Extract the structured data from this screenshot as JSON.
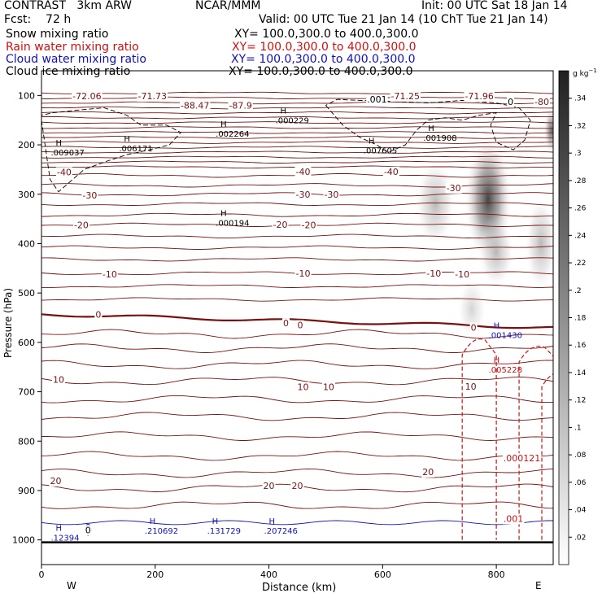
{
  "header": {
    "line1_left": "CONTRAST   3km ARW",
    "line1_center": "NCAR/MMM",
    "line1_right": "Init: 00 UTC Sat 18 Jan 14",
    "fcst": "Fcst:    72 h",
    "valid": "Valid: 00 UTC Tue 21 Jan 14 (10 ChT Tue 21 Jan 14)"
  },
  "fields": [
    {
      "name": "Snow mixing ratio",
      "xy": "XY= 100.0,300.0 to 400.0,300.0",
      "color": "#000000"
    },
    {
      "name": "Rain water mixing ratio",
      "xy": "XY= 100.0,300.0 to 400.0,300.0",
      "color": "#d01010"
    },
    {
      "name": "Cloud water mixing ratio",
      "xy": "XY= 100.0,300.0 to 400.0,300.0",
      "color": "#1010c0"
    },
    {
      "name": "Cloud ice mixing ratio",
      "xy": "XY= 100.0,300.0 to 400.0,300.0",
      "color": "#000000"
    }
  ],
  "colors": {
    "temperature_contour": "#7a1010",
    "rain_contour": "#d01010",
    "cloud_water": "#1010c0",
    "cloud_ice": "#000000"
  },
  "chart_data": {
    "type": "cross-section",
    "xlabel": "Distance (km)",
    "ylabel": "Pressure (hPa)",
    "xlim": [
      0,
      900
    ],
    "ylim": [
      1050,
      50
    ],
    "x_ticks": [
      0,
      200,
      400,
      600,
      800
    ],
    "y_ticks": [
      100,
      200,
      300,
      400,
      500,
      600,
      700,
      800,
      900,
      1000
    ],
    "x_end_labels": {
      "left": "W",
      "right": "E"
    },
    "colorbar": {
      "unit": "g kg",
      "unit_exponent": "−1",
      "ticks": [
        ".02",
        ".04",
        ".06",
        ".08",
        ".1",
        ".12",
        ".14",
        ".16",
        ".18",
        ".2",
        ".22",
        ".24",
        ".26",
        ".28",
        ".3",
        ".32",
        ".34"
      ]
    },
    "temperature_labels": [
      {
        "text": "-72.06",
        "x": 80,
        "p": 101
      },
      {
        "text": "-71.73",
        "x": 195,
        "p": 101
      },
      {
        "text": "-88.47",
        "x": 270,
        "p": 120
      },
      {
        "text": "-87.9",
        "x": 350,
        "p": 120
      },
      {
        "text": "-71.25",
        "x": 640,
        "p": 101
      },
      {
        "text": "-71.96",
        "x": 770,
        "p": 101
      },
      {
        "text": "-80",
        "x": 880,
        "p": 113
      },
      {
        "text": "-40",
        "x": 40,
        "p": 255
      },
      {
        "text": "-40",
        "x": 460,
        "p": 254
      },
      {
        "text": "-40",
        "x": 615,
        "p": 254
      },
      {
        "text": "-30",
        "x": 85,
        "p": 302
      },
      {
        "text": "-30",
        "x": 460,
        "p": 300
      },
      {
        "text": "-30",
        "x": 510,
        "p": 300
      },
      {
        "text": "-30",
        "x": 725,
        "p": 287
      },
      {
        "text": "-20",
        "x": 70,
        "p": 362
      },
      {
        "text": "-20",
        "x": 420,
        "p": 361
      },
      {
        "text": "-20",
        "x": 470,
        "p": 362
      },
      {
        "text": "-10",
        "x": 120,
        "p": 462
      },
      {
        "text": "-10",
        "x": 460,
        "p": 460
      },
      {
        "text": "-10",
        "x": 690,
        "p": 460
      },
      {
        "text": "-10",
        "x": 740,
        "p": 462
      },
      {
        "text": "0",
        "x": 100,
        "p": 543
      },
      {
        "text": "0",
        "x": 430,
        "p": 561
      },
      {
        "text": "0",
        "x": 455,
        "p": 565
      },
      {
        "text": "0",
        "x": 760,
        "p": 570
      },
      {
        "text": "10",
        "x": 30,
        "p": 675
      },
      {
        "text": "10",
        "x": 460,
        "p": 690
      },
      {
        "text": "10",
        "x": 505,
        "p": 690
      },
      {
        "text": "10",
        "x": 755,
        "p": 689
      },
      {
        "text": "20",
        "x": 25,
        "p": 880
      },
      {
        "text": "20",
        "x": 400,
        "p": 890
      },
      {
        "text": "20",
        "x": 450,
        "p": 890
      },
      {
        "text": "20",
        "x": 680,
        "p": 862
      }
    ],
    "extrema": [
      {
        "type": "H",
        "value": ".009037",
        "x": 25,
        "p": 205,
        "field": "ice"
      },
      {
        "type": "H",
        "value": ".006171",
        "x": 145,
        "p": 197,
        "field": "ice"
      },
      {
        "type": "H",
        "value": ".002264",
        "x": 315,
        "p": 167,
        "field": "ice"
      },
      {
        "type": "H",
        "value": ".000229",
        "x": 420,
        "p": 140,
        "field": "ice"
      },
      {
        "type": "H",
        "value": ".000194",
        "x": 315,
        "p": 347,
        "field": "ice"
      },
      {
        "type": "H",
        "value": ".007605",
        "x": 575,
        "p": 201,
        "field": "ice"
      },
      {
        "type": "H",
        "value": ".001908",
        "x": 680,
        "p": 175,
        "field": "ice"
      },
      {
        "type": "H",
        "value": ".001430",
        "x": 795,
        "p": 575,
        "field": "cloud_water"
      },
      {
        "type": "H",
        "value": ".005228",
        "x": 795,
        "p": 645,
        "field": "rain"
      },
      {
        "type": "H",
        "value": ".12394",
        "x": 25,
        "p": 985,
        "field": "cloud_water"
      },
      {
        "type": "H",
        "value": ".210692",
        "x": 190,
        "p": 971,
        "field": "cloud_water"
      },
      {
        "type": "H",
        "value": ".131729",
        "x": 300,
        "p": 971,
        "field": "cloud_water"
      },
      {
        "type": "H",
        "value": ".207246",
        "x": 400,
        "p": 971,
        "field": "cloud_water"
      }
    ],
    "rain_labels": [
      {
        "text": ".000121",
        "x": 845,
        "p": 834
      },
      {
        "text": ".001",
        "x": 830,
        "p": 957
      }
    ],
    "ice_labels": [
      {
        "text": ".001",
        "x": 590,
        "p": 108
      },
      {
        "text": "0",
        "x": 82,
        "p": 980
      },
      {
        "text": "0",
        "x": 825,
        "p": 113
      }
    ]
  }
}
